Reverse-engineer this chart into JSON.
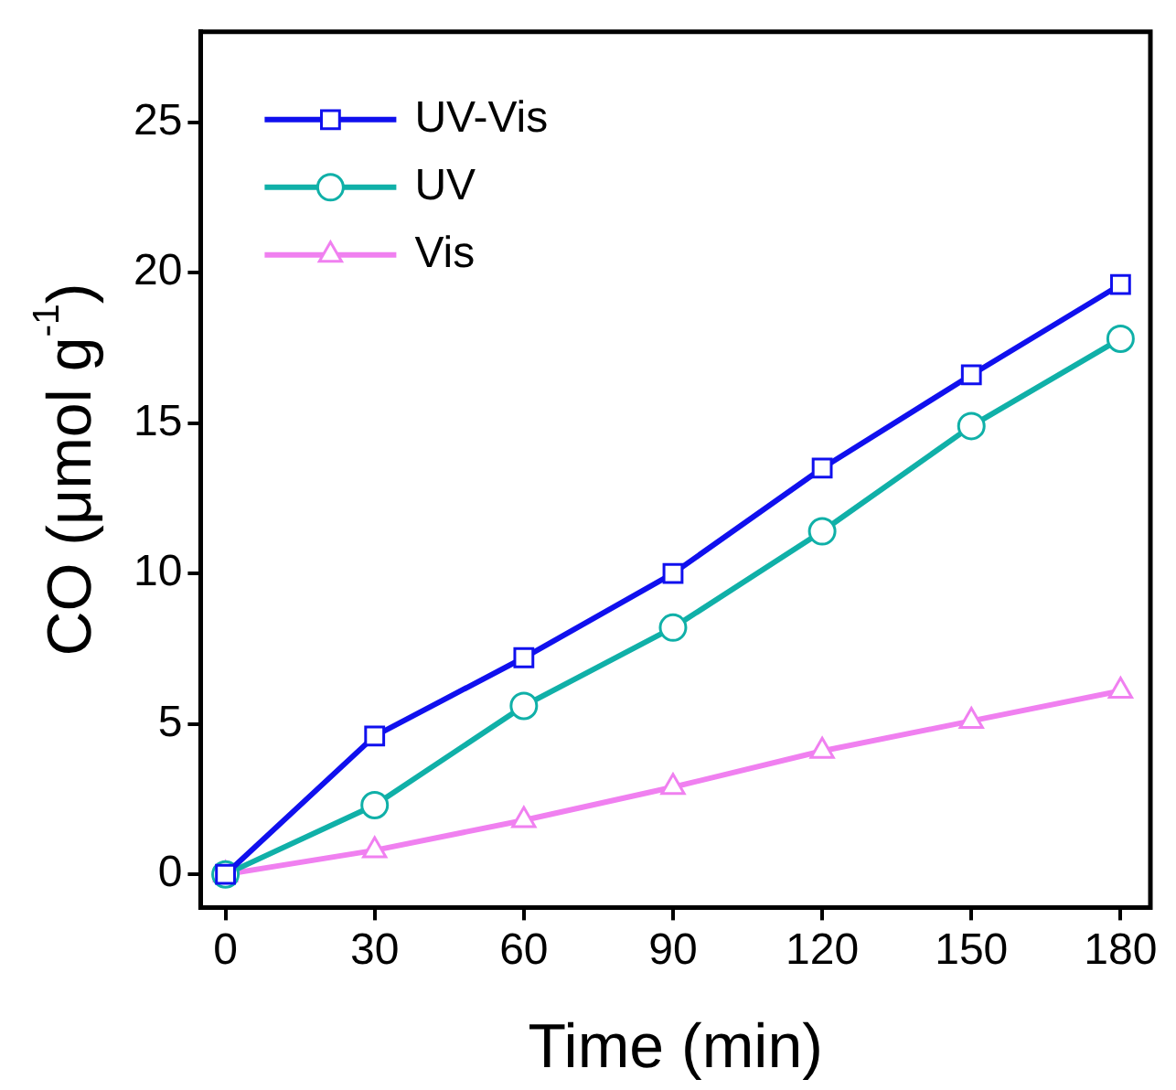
{
  "chart_data": {
    "type": "line",
    "xlabel": "Time (min)",
    "ylabel": "CO (μmol g$^{-1}$)",
    "x": [
      0,
      30,
      60,
      90,
      120,
      150,
      180
    ],
    "series": [
      {
        "name": "UV-Vis",
        "color": "#1010ee",
        "marker": "square",
        "values": [
          0,
          4.6,
          7.2,
          10.0,
          13.5,
          16.6,
          19.6
        ]
      },
      {
        "name": "UV",
        "color": "#10b0a8",
        "marker": "circle",
        "values": [
          0,
          2.3,
          5.6,
          8.2,
          11.4,
          14.9,
          17.8
        ]
      },
      {
        "name": "Vis",
        "color": "#f080f0",
        "marker": "triangle",
        "values": [
          0,
          0.8,
          1.8,
          2.9,
          4.1,
          5.1,
          6.1
        ]
      }
    ],
    "xlim": [
      -5,
      186
    ],
    "xticks": [
      0,
      30,
      60,
      90,
      120,
      150,
      180
    ],
    "ylim": [
      -1.1,
      28
    ],
    "yticks": [
      0,
      5,
      10,
      15,
      20,
      25
    ],
    "legend": "top left",
    "line_style": "solid",
    "grid": false
  }
}
